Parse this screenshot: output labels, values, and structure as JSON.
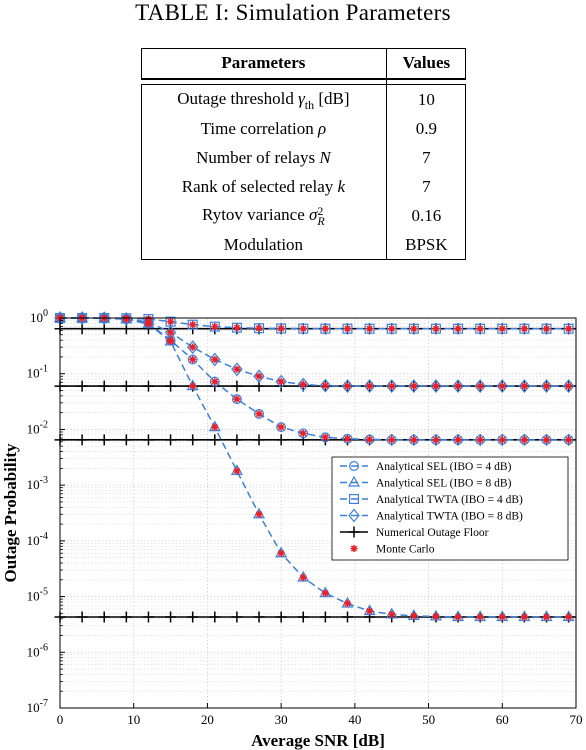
{
  "table": {
    "caption": "TABLE I: Simulation Parameters",
    "headers": [
      "Parameters",
      "Values"
    ],
    "rows": [
      {
        "label": "Outage threshold ",
        "symbol": "γ",
        "sub": "th",
        "sup": "",
        "tail": " [dB]",
        "value": "10"
      },
      {
        "label": "Time correlation ",
        "symbol": "ρ",
        "sub": "",
        "sup": "",
        "tail": "",
        "value": "0.9"
      },
      {
        "label": "Number of relays ",
        "symbol": "N",
        "sub": "",
        "sup": "",
        "tail": "",
        "value": "7"
      },
      {
        "label": "Rank of selected relay ",
        "symbol": "k",
        "sub": "",
        "sup": "",
        "tail": "",
        "value": "7"
      },
      {
        "label": "Rytov variance ",
        "symbol": "σ",
        "sub": "R",
        "sup": "2",
        "tail": "",
        "value": "0.16"
      },
      {
        "label": "Modulation",
        "symbol": "",
        "sub": "",
        "sup": "",
        "tail": "",
        "value": "BPSK"
      }
    ]
  },
  "chart_data": {
    "type": "line",
    "xlabel": "Average SNR [dB]",
    "ylabel": "Outage Probability",
    "xlim": [
      0,
      70
    ],
    "ylim": [
      1e-07,
      1
    ],
    "yscale": "log",
    "grid": true,
    "legend_position": "center-right",
    "xticks": [
      0,
      10,
      20,
      30,
      40,
      50,
      60,
      70
    ],
    "yticks": [
      {
        "base": "10",
        "exp": "0"
      },
      {
        "base": "10",
        "exp": "-1"
      },
      {
        "base": "10",
        "exp": "-2"
      },
      {
        "base": "10",
        "exp": "-3"
      },
      {
        "base": "10",
        "exp": "-4"
      },
      {
        "base": "10",
        "exp": "-5"
      },
      {
        "base": "10",
        "exp": "-6"
      },
      {
        "base": "10",
        "exp": "-7"
      }
    ],
    "colors": {
      "analytical": "#3d7fd9",
      "floor": "#000000",
      "monte_carlo": "#e8202a"
    },
    "x": [
      0,
      3,
      6,
      9,
      12,
      15,
      18,
      21,
      24,
      27,
      30,
      33,
      36,
      39,
      42,
      45,
      48,
      51,
      54,
      57,
      60,
      63,
      66,
      69
    ],
    "series": [
      {
        "name": "Analytical SEL (IBO = 4 dB)",
        "marker": "circle",
        "color": "#3d7fd9",
        "values": [
          1.0,
          1.0,
          0.99,
          0.96,
          0.8,
          0.4,
          0.18,
          0.072,
          0.035,
          0.019,
          0.011,
          0.0085,
          0.0072,
          0.0068,
          0.0066,
          0.0065,
          0.0065,
          0.0065,
          0.0065,
          0.0065,
          0.0065,
          0.0065,
          0.0065,
          0.0065
        ]
      },
      {
        "name": "Analytical SEL (IBO = 8 dB)",
        "marker": "triangle",
        "color": "#3d7fd9",
        "values": [
          1.0,
          1.0,
          0.99,
          0.95,
          0.78,
          0.38,
          0.06,
          0.011,
          0.0018,
          0.0003,
          6e-05,
          2.2e-05,
          1.15e-05,
          7.5e-06,
          5.5e-06,
          4.8e-06,
          4.5e-06,
          4.4e-06,
          4.3e-06,
          4.3e-06,
          4.3e-06,
          4.3e-06,
          4.3e-06,
          4.3e-06
        ]
      },
      {
        "name": "Analytical TWTA (IBO = 4 dB)",
        "marker": "square",
        "color": "#3d7fd9",
        "values": [
          1.0,
          1.0,
          1.0,
          0.99,
          0.96,
          0.86,
          0.76,
          0.7,
          0.67,
          0.655,
          0.648,
          0.645,
          0.643,
          0.642,
          0.642,
          0.642,
          0.642,
          0.642,
          0.642,
          0.642,
          0.642,
          0.642,
          0.642,
          0.642
        ]
      },
      {
        "name": "Analytical TWTA (IBO = 8 dB)",
        "marker": "diamond",
        "color": "#3d7fd9",
        "values": [
          1.0,
          1.0,
          0.99,
          0.96,
          0.85,
          0.55,
          0.3,
          0.18,
          0.12,
          0.09,
          0.072,
          0.064,
          0.061,
          0.06,
          0.06,
          0.06,
          0.06,
          0.06,
          0.06,
          0.06,
          0.06,
          0.06,
          0.06,
          0.06
        ]
      },
      {
        "name": "Numerical Outage Floor",
        "marker": "plus",
        "color": "#000000",
        "floors": [
          0.642,
          0.06,
          0.0065,
          4.3e-06
        ]
      },
      {
        "name": "Monte Carlo",
        "marker": "asterisk",
        "color": "#e8202a"
      }
    ]
  }
}
